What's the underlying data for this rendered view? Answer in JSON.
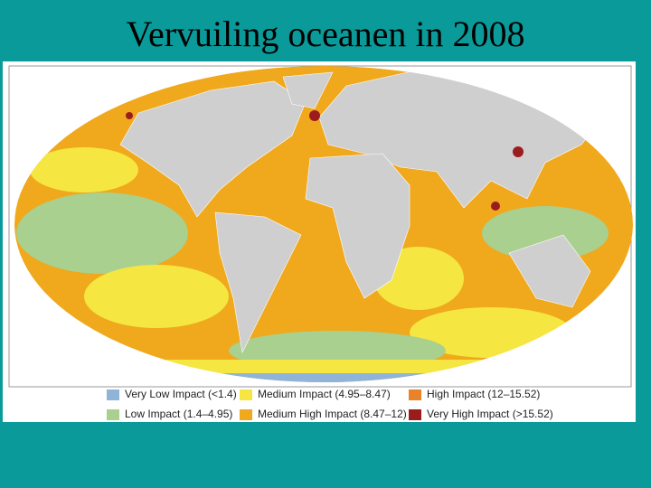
{
  "title": "Vervuiling oceanen in 2008",
  "legend": [
    {
      "label": "Very Low Impact (<1.4)",
      "color": "#8fb3d9"
    },
    {
      "label": "Low Impact (1.4–4.95)",
      "color": "#a9d08e"
    },
    {
      "label": "Medium Impact (4.95–8.47)",
      "color": "#f5e642"
    },
    {
      "label": "Medium High Impact (8.47–12)",
      "color": "#f0a81c"
    },
    {
      "label": "High Impact (12–15.52)",
      "color": "#e8832a"
    },
    {
      "label": "Very High Impact (>15.52)",
      "color": "#9b1c1c"
    }
  ]
}
